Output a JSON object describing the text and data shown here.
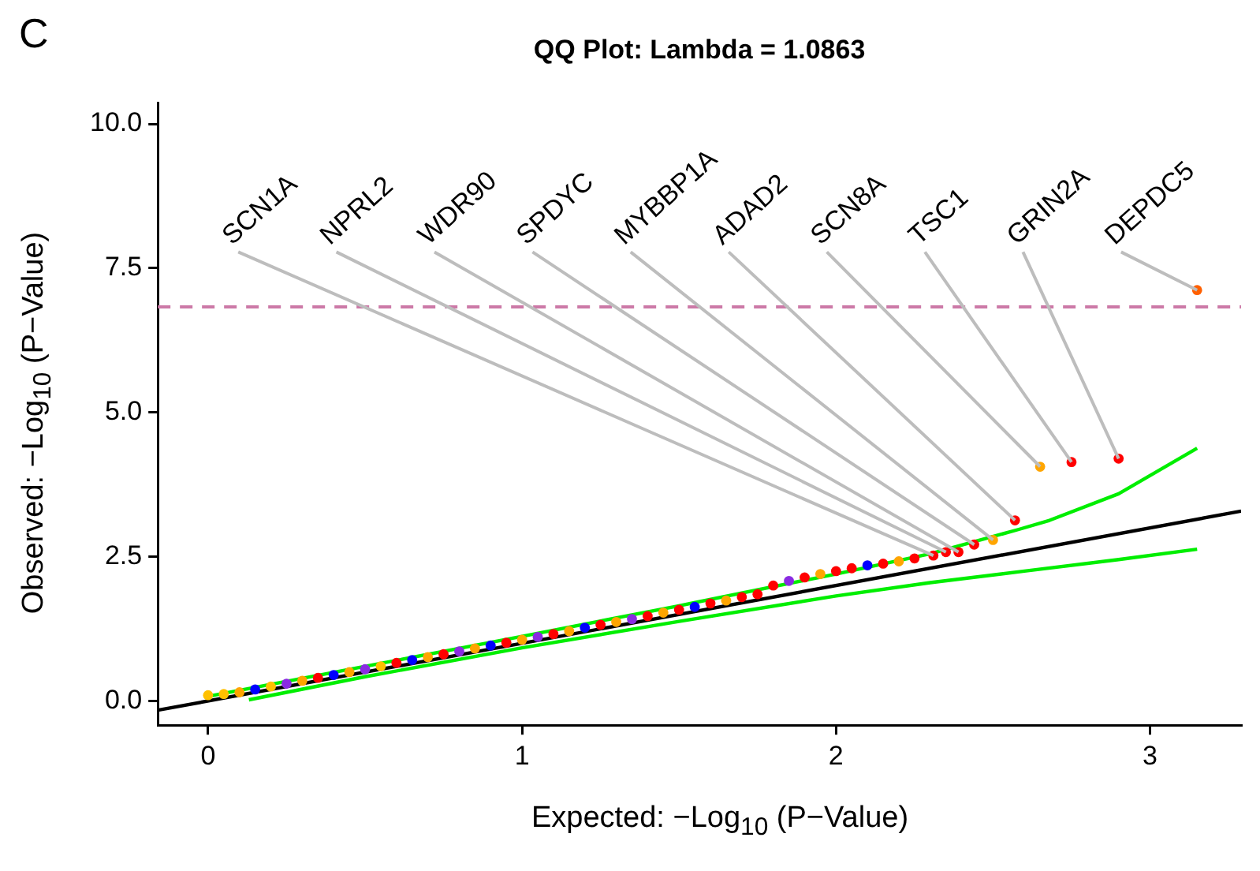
{
  "chart_data": {
    "type": "scatter",
    "title": "QQ Plot: Lambda = 1.0863",
    "xlabel": "Expected: −Log$_{10}$ (P−Value)",
    "ylabel": "Observed: −Log$_{10}$ (P−Value)",
    "xlim": [
      -0.16,
      3.29
    ],
    "ylim": [
      -0.42,
      10.37
    ],
    "xticks": [
      0,
      1,
      2,
      3
    ],
    "yticks": [
      {
        "value": 0,
        "label": "0.0"
      },
      2.5,
      {
        "value": 5,
        "label": "5.0"
      },
      7.5,
      {
        "value": 10,
        "label": "10.0"
      }
    ],
    "grid": false,
    "legend": false,
    "series": [
      {
        "marker": "circle",
        "x": [
          0,
          0.05,
          0.1,
          0.15,
          0.2,
          0.25,
          0.3,
          0.35,
          0.4,
          0.45,
          0.5,
          0.55,
          0.6,
          0.65,
          0.7,
          0.75,
          0.8,
          0.85,
          0.9,
          0.95,
          1.0,
          1.05,
          1.1,
          1.15,
          1.2,
          1.25,
          1.3,
          1.35,
          1.4,
          1.45,
          1.5,
          1.55,
          1.6,
          1.65,
          1.7,
          1.75,
          1.8,
          1.85,
          1.9,
          1.95,
          2.0,
          2.05,
          2.1,
          2.15,
          2.2,
          2.25,
          2.31,
          2.35,
          2.39,
          2.44,
          2.5,
          2.57,
          2.65,
          2.75,
          2.9,
          3.15
        ],
        "values": [
          0.1,
          0.12,
          0.15,
          0.2,
          0.25,
          0.3,
          0.35,
          0.4,
          0.45,
          0.5,
          0.55,
          0.6,
          0.66,
          0.71,
          0.76,
          0.81,
          0.86,
          0.91,
          0.96,
          1.01,
          1.06,
          1.11,
          1.16,
          1.21,
          1.27,
          1.32,
          1.37,
          1.42,
          1.47,
          1.53,
          1.58,
          1.63,
          1.69,
          1.74,
          1.8,
          1.85,
          2.0,
          2.08,
          2.14,
          2.2,
          2.25,
          2.3,
          2.35,
          2.38,
          2.42,
          2.47,
          2.52,
          2.58,
          2.58,
          2.71,
          2.79,
          3.13,
          4.06,
          4.14,
          4.2,
          7.12
        ],
        "colors": [
          "#ffc000",
          "#ffc000",
          "#ffa500",
          "#0000ff",
          "#ffc000",
          "#8a2be2",
          "#ffa500",
          "#ff0000",
          "#0000ff",
          "#ffa500",
          "#8a2be2",
          "#ffc000",
          "#ff0000",
          "#0000ff",
          "#ffa500",
          "#ff0000",
          "#8a2be2",
          "#ffa500",
          "#0000ff",
          "#ff0000",
          "#ffa500",
          "#8a2be2",
          "#ff0000",
          "#ffa500",
          "#0000ff",
          "#ff0000",
          "#ffa500",
          "#8a2be2",
          "#ff0000",
          "#ffa500",
          "#ff0000",
          "#0000ff",
          "#ff0000",
          "#ffa500",
          "#ff0000",
          "#ff0000",
          "#ff0000",
          "#8a2be2",
          "#ff0000",
          "#ffa500",
          "#ff0000",
          "#ff0000",
          "#0000ff",
          "#ff0000",
          "#ffa500",
          "#ff0000",
          "#ff0000",
          "#ff0000",
          "#ff0000",
          "#ff0000",
          "#ffa500",
          "#ff0000",
          "#ffa500",
          "#ff0000",
          "#ff0000",
          "#ff6000"
        ]
      },
      {
        "type": "line",
        "marker": "none",
        "color": "#00ee00",
        "x": [
          0,
          0.5,
          1,
          1.5,
          2,
          2.3,
          2.58,
          2.68,
          2.9,
          3.15
        ],
        "values": [
          0.08,
          0.6,
          1.12,
          1.65,
          2.2,
          2.55,
          2.97,
          3.13,
          3.59,
          4.38
        ]
      },
      {
        "type": "line",
        "marker": "none",
        "color": "#00ee00",
        "x": [
          0.13,
          0.5,
          1,
          1.5,
          2,
          2.3,
          2.6,
          2.9,
          3.15
        ],
        "values": [
          0.02,
          0.42,
          0.92,
          1.38,
          1.82,
          2.05,
          2.25,
          2.45,
          2.63
        ]
      },
      {
        "type": "line",
        "marker": "none",
        "color": "#000000",
        "x": [
          -0.16,
          3.29
        ],
        "values": [
          -0.16,
          3.29
        ]
      }
    ],
    "ref_lines": [
      {
        "axis": "y",
        "value": 6.83,
        "color": "#cc79a7",
        "line_style": "dashed"
      }
    ],
    "annotations": [
      "C",
      {
        "text": "SCN1A",
        "x": 2.31,
        "y": 2.52
      },
      {
        "text": "NPRL2",
        "x": 2.35,
        "y": 2.58
      },
      {
        "text": "WDR90",
        "x": 2.39,
        "y": 2.58
      },
      {
        "text": "SPDYC",
        "x": 2.44,
        "y": 2.71
      },
      {
        "text": "MYBBP1A",
        "x": 2.5,
        "y": 2.79
      },
      {
        "text": "ADAD2",
        "x": 2.57,
        "y": 3.13
      },
      {
        "text": "SCN8A",
        "x": 2.65,
        "y": 4.06
      },
      {
        "text": "TSC1",
        "x": 2.75,
        "y": 4.14
      },
      {
        "text": "GRIN2A",
        "x": 2.9,
        "y": 4.2
      },
      {
        "text": "DEPDC5",
        "x": 3.15,
        "y": 7.12
      }
    ]
  }
}
